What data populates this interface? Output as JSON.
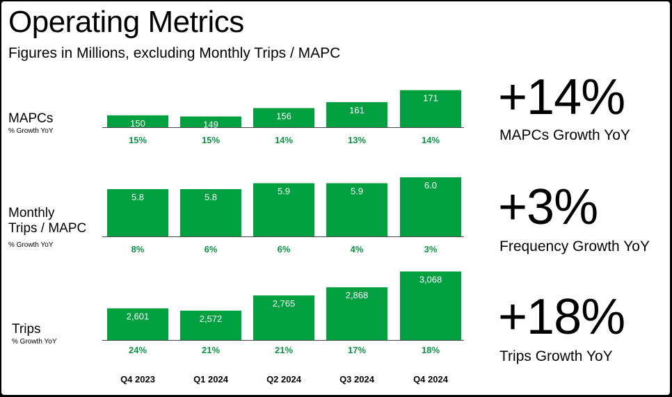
{
  "title": "Operating Metrics",
  "subtitle": "Figures in Millions, excluding Monthly Trips / MAPC",
  "colors": {
    "bar": "#00A040",
    "growth_text": "#0E9144",
    "bar_label": "#ffffff"
  },
  "chart_data": [
    {
      "type": "bar",
      "label": "MAPCs",
      "growth_label": "% Growth YoY",
      "categories": [
        "Q4 2023",
        "Q1 2024",
        "Q2 2024",
        "Q3 2024",
        "Q4 2024"
      ],
      "values": [
        150,
        149,
        156,
        161,
        171
      ],
      "value_labels": [
        "150",
        "149",
        "156",
        "161",
        "171"
      ],
      "growth": [
        "15%",
        "15%",
        "14%",
        "13%",
        "14%"
      ],
      "headline": "+14%",
      "headline_caption": "MAPCs Growth YoY"
    },
    {
      "type": "bar",
      "label": "Monthly Trips / MAPC",
      "label_lines": [
        "Monthly",
        "Trips / MAPC"
      ],
      "growth_label": "% Growth YoY",
      "categories": [
        "Q4 2023",
        "Q1 2024",
        "Q2 2024",
        "Q3 2024",
        "Q4 2024"
      ],
      "values": [
        5.8,
        5.8,
        5.9,
        5.9,
        6.0
      ],
      "value_labels": [
        "5.8",
        "5.8",
        "5.9",
        "5.9",
        "6.0"
      ],
      "growth": [
        "8%",
        "6%",
        "6%",
        "4%",
        "3%"
      ],
      "headline": "+3%",
      "headline_caption": "Frequency Growth YoY"
    },
    {
      "type": "bar",
      "label": "Trips",
      "growth_label": "% Growth YoY",
      "categories": [
        "Q4 2023",
        "Q1 2024",
        "Q2 2024",
        "Q3 2024",
        "Q4 2024"
      ],
      "values": [
        2601,
        2572,
        2765,
        2868,
        3068
      ],
      "value_labels": [
        "2,601",
        "2,572",
        "2,765",
        "2,868",
        "3,068"
      ],
      "growth": [
        "24%",
        "21%",
        "21%",
        "17%",
        "18%"
      ],
      "headline": "+18%",
      "headline_caption": "Trips Growth YoY"
    }
  ],
  "x_axis_labels": [
    "Q4 2023",
    "Q1 2024",
    "Q2 2024",
    "Q3 2024",
    "Q4 2024"
  ]
}
